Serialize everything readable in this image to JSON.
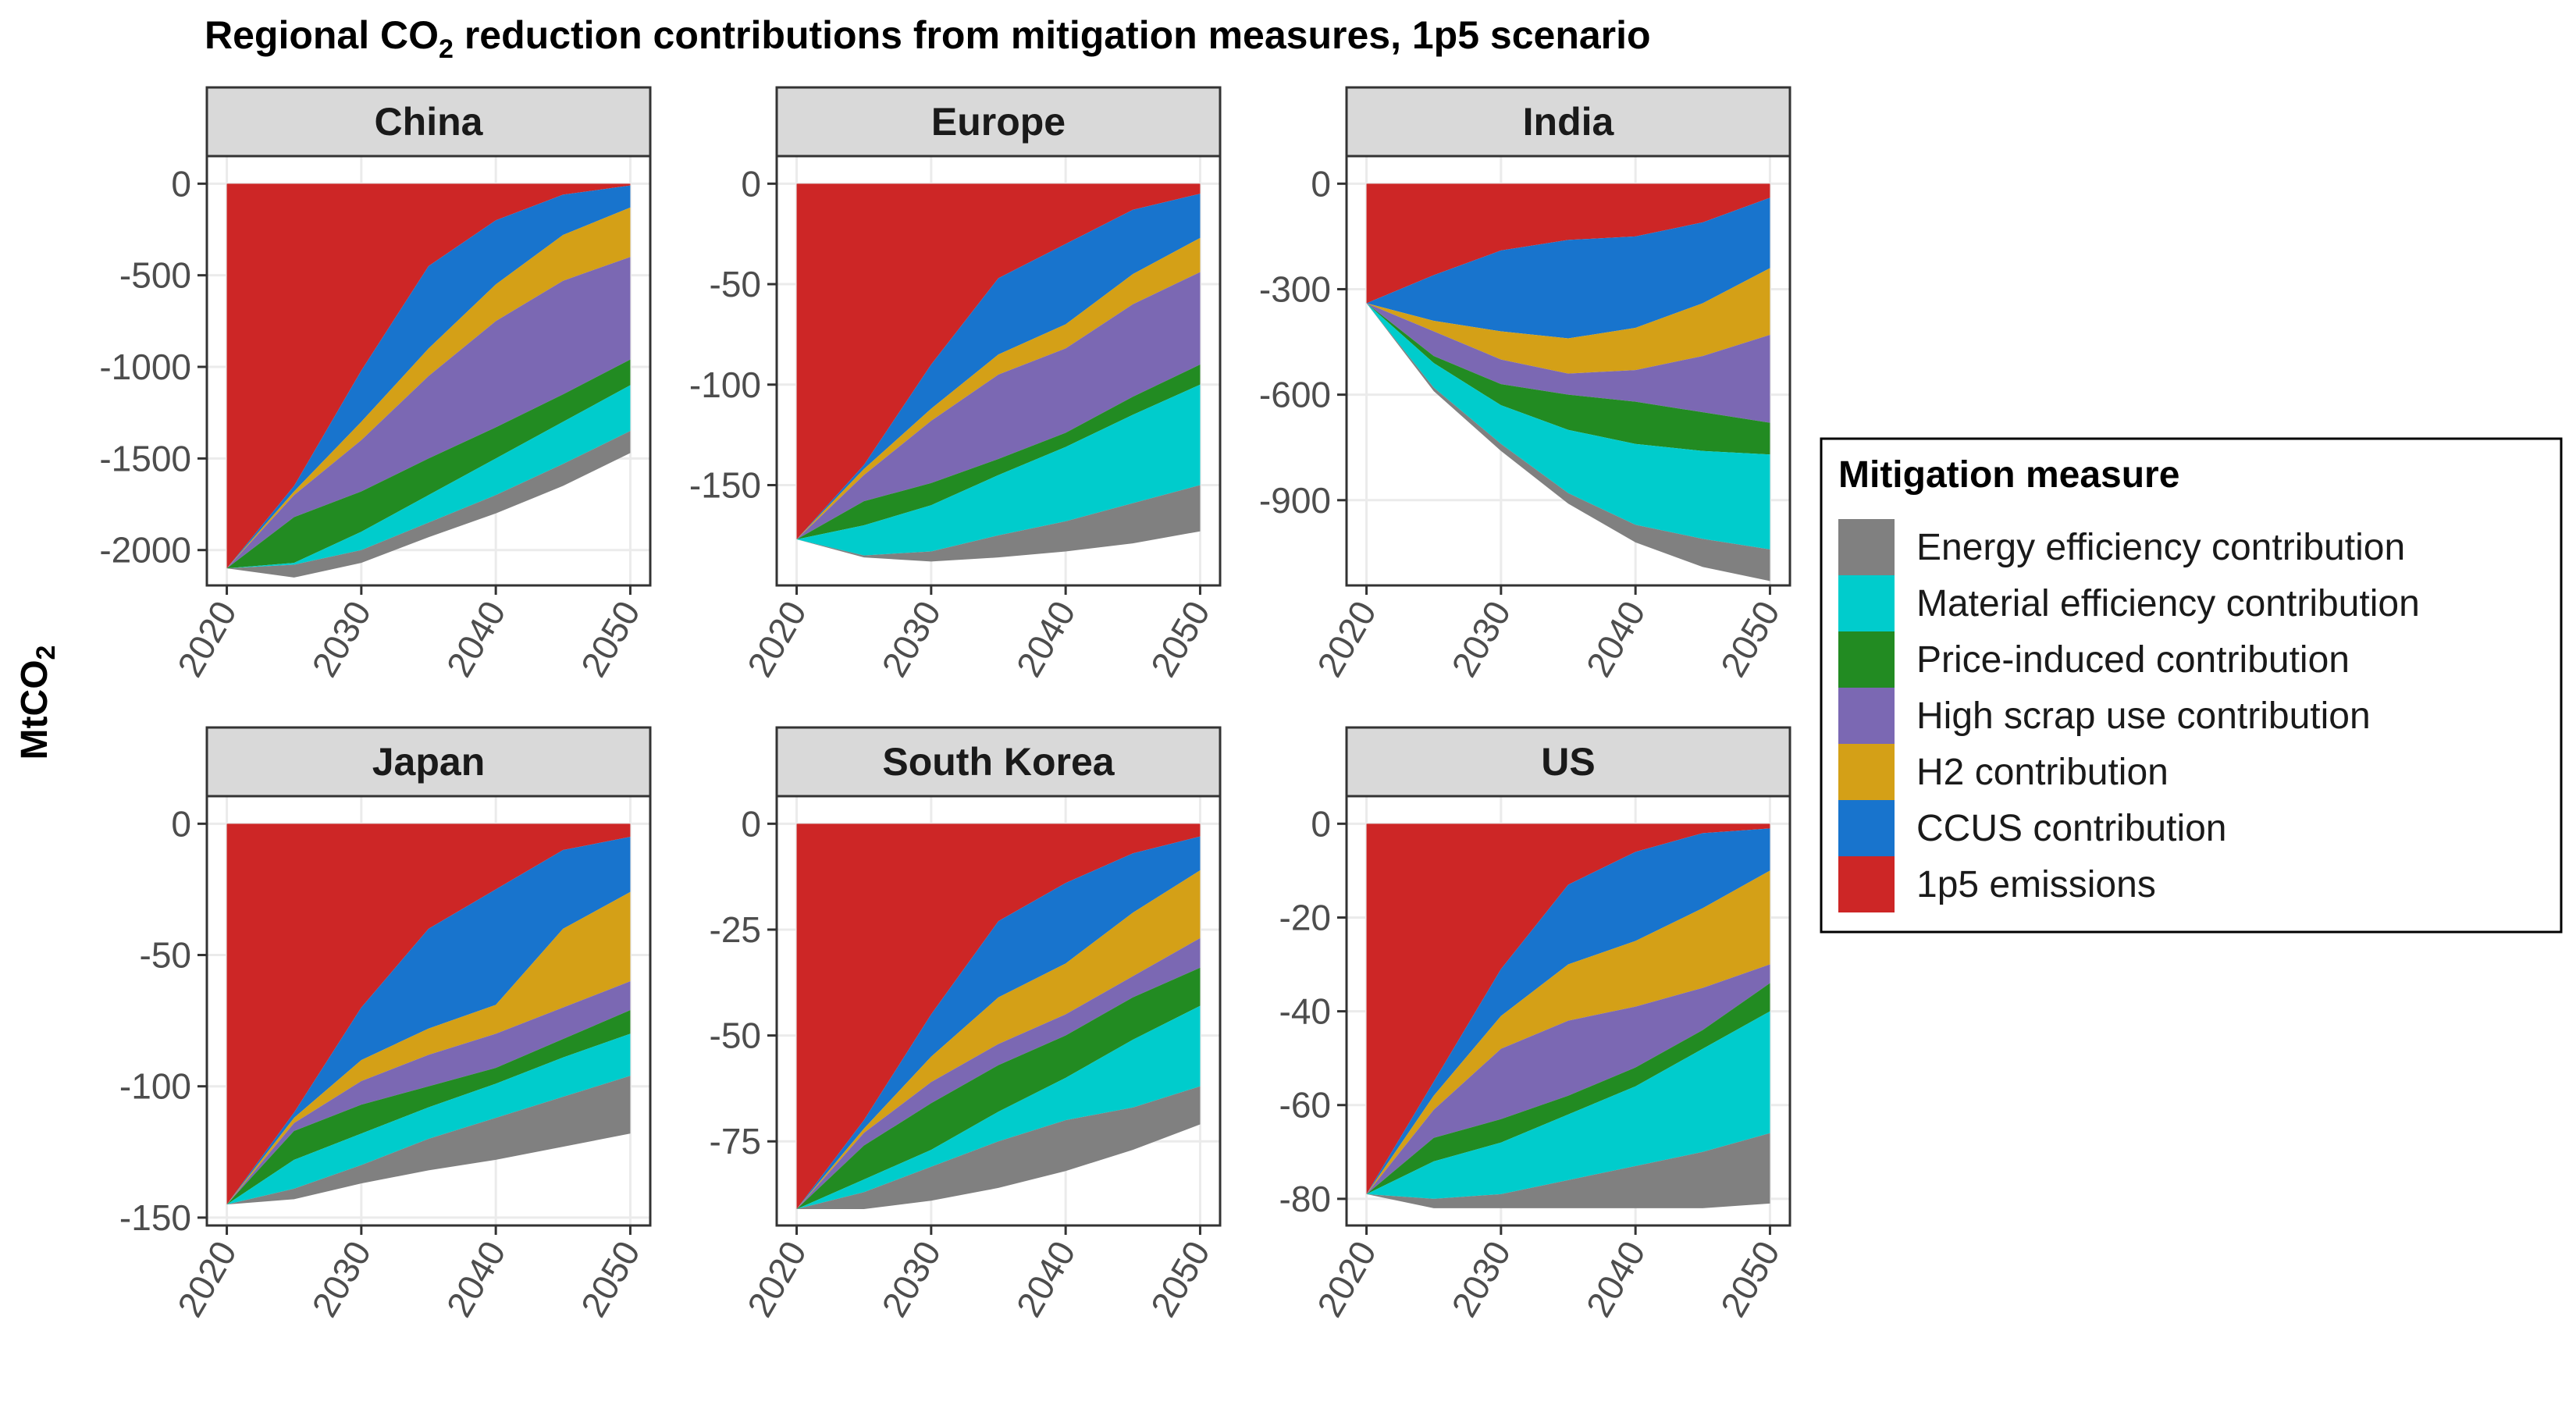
{
  "title": {
    "before": "Regional CO",
    "sub": "2",
    "after": " reduction contributions from mitigation measures, 1p5 scenario"
  },
  "ylabel": {
    "main": "MtCO",
    "sub": "2"
  },
  "legend": {
    "title": "Mitigation measure",
    "items": [
      {
        "label": "Energy efficiency contribution",
        "color": "#808080"
      },
      {
        "label": "Material efficiency contribution",
        "color": "#00cccc"
      },
      {
        "label": "Price-induced contribution",
        "color": "#228b22"
      },
      {
        "label": "High scrap use contribution",
        "color": "#7b68b3"
      },
      {
        "label": "H2 contribution",
        "color": "#d4a017"
      },
      {
        "label": "CCUS contribution",
        "color": "#1874cd"
      },
      {
        "label": "1p5 emissions",
        "color": "#cd2626"
      }
    ]
  },
  "chart_data": {
    "type": "area",
    "facet_by": "region",
    "x": [
      2020,
      2025,
      2030,
      2035,
      2040,
      2045,
      2050
    ],
    "x_ticks": [
      "2020",
      "2030",
      "2040",
      "2050"
    ],
    "stack_order_bottom_to_top": [
      "Energy efficiency contribution",
      "Material efficiency contribution",
      "Price-induced contribution",
      "High scrap use contribution",
      "H2 contribution",
      "CCUS contribution",
      "1p5 emissions"
    ],
    "panels": [
      {
        "region": "China",
        "ylim": [
          -2150,
          0
        ],
        "y_ticks": [
          0,
          -500,
          -1000,
          -1500,
          -2000
        ],
        "y_tick_labels": [
          "0",
          "-500",
          "-1000",
          "-1500",
          "-2000"
        ],
        "boundaries": [
          {
            "name": "Energy efficiency contribution",
            "values": [
              -2100,
              -2150,
              -2070,
              -1930,
              -1800,
              -1650,
              -1470
            ]
          },
          {
            "name": "Material efficiency contribution",
            "values": [
              -2100,
              -2080,
              -2000,
              -1850,
              -1700,
              -1530,
              -1350
            ]
          },
          {
            "name": "Price-induced contribution",
            "values": [
              -2100,
              -2070,
              -1900,
              -1700,
              -1500,
              -1300,
              -1100
            ]
          },
          {
            "name": "High scrap use contribution",
            "values": [
              -2100,
              -1820,
              -1680,
              -1500,
              -1330,
              -1150,
              -960
            ]
          },
          {
            "name": "H2 contribution",
            "values": [
              -2100,
              -1700,
              -1400,
              -1050,
              -750,
              -530,
              -400
            ]
          },
          {
            "name": "CCUS contribution",
            "values": [
              -2100,
              -1680,
              -1300,
              -900,
              -550,
              -280,
              -130
            ]
          },
          {
            "name": "1p5 emissions",
            "values": [
              -2100,
              -1650,
              -1020,
              -450,
              -200,
              -60,
              -10
            ]
          }
        ]
      },
      {
        "region": "Europe",
        "ylim": [
          -196,
          0
        ],
        "y_ticks": [
          0,
          -50,
          -100,
          -150
        ],
        "y_tick_labels": [
          "0",
          "-50",
          "-100",
          "-150"
        ],
        "boundaries": [
          {
            "name": "Energy efficiency contribution",
            "values": [
              -177,
              -186,
              -188,
              -186,
              -183,
              -179,
              -173
            ]
          },
          {
            "name": "Material efficiency contribution",
            "values": [
              -177,
              -185,
              -183,
              -175,
              -168,
              -159,
              -150
            ]
          },
          {
            "name": "Price-induced contribution",
            "values": [
              -177,
              -170,
              -160,
              -145,
              -131,
              -115,
              -100
            ]
          },
          {
            "name": "High scrap use contribution",
            "values": [
              -177,
              -158,
              -149,
              -137,
              -124,
              -106,
              -90
            ]
          },
          {
            "name": "H2 contribution",
            "values": [
              -177,
              -145,
              -118,
              -95,
              -82,
              -60,
              -44
            ]
          },
          {
            "name": "CCUS contribution",
            "values": [
              -177,
              -142,
              -112,
              -85,
              -70,
              -45,
              -27
            ]
          },
          {
            "name": "1p5 emissions",
            "values": [
              -177,
              -140,
              -90,
              -47,
              -30,
              -13,
              -5
            ]
          }
        ]
      },
      {
        "region": "India",
        "ylim": [
          -1120,
          0
        ],
        "y_ticks": [
          0,
          -300,
          -600,
          -900
        ],
        "y_tick_labels": [
          "0",
          "-300",
          "-600",
          "-900"
        ],
        "boundaries": [
          {
            "name": "Energy efficiency contribution",
            "values": [
              -340,
              -590,
              -760,
              -910,
              -1020,
              -1090,
              -1130
            ]
          },
          {
            "name": "Material efficiency contribution",
            "values": [
              -340,
              -580,
              -740,
              -880,
              -970,
              -1010,
              -1040
            ]
          },
          {
            "name": "Price-induced contribution",
            "values": [
              -340,
              -510,
              -630,
              -700,
              -740,
              -760,
              -770
            ]
          },
          {
            "name": "High scrap use contribution",
            "values": [
              -340,
              -490,
              -570,
              -600,
              -620,
              -650,
              -680
            ]
          },
          {
            "name": "H2 contribution",
            "values": [
              -340,
              -420,
              -500,
              -540,
              -530,
              -490,
              -430
            ]
          },
          {
            "name": "CCUS contribution",
            "values": [
              -340,
              -390,
              -420,
              -440,
              -410,
              -340,
              -240
            ]
          },
          {
            "name": "1p5 emissions",
            "values": [
              -340,
              -260,
              -190,
              -160,
              -150,
              -110,
              -40
            ]
          }
        ]
      },
      {
        "region": "Japan",
        "ylim": [
          -150,
          0
        ],
        "y_ticks": [
          0,
          -50,
          -100,
          -150
        ],
        "y_tick_labels": [
          "0",
          "-50",
          "-100",
          "-150"
        ],
        "boundaries": [
          {
            "name": "Energy efficiency contribution",
            "values": [
              -145,
              -143,
              -137,
              -132,
              -128,
              -123,
              -118
            ]
          },
          {
            "name": "Material efficiency contribution",
            "values": [
              -145,
              -139,
              -130,
              -120,
              -112,
              -104,
              -96
            ]
          },
          {
            "name": "Price-induced contribution",
            "values": [
              -145,
              -128,
              -118,
              -108,
              -99,
              -89,
              -80
            ]
          },
          {
            "name": "High scrap use contribution",
            "values": [
              -145,
              -117,
              -107,
              -100,
              -93,
              -82,
              -71
            ]
          },
          {
            "name": "H2 contribution",
            "values": [
              -145,
              -114,
              -98,
              -88,
              -80,
              -70,
              -60
            ]
          },
          {
            "name": "CCUS contribution",
            "values": [
              -145,
              -112,
              -90,
              -78,
              -69,
              -40,
              -26
            ]
          },
          {
            "name": "1p5 emissions",
            "values": [
              -145,
              -110,
              -70,
              -40,
              -25,
              -10,
              -5
            ]
          }
        ]
      },
      {
        "region": "South Korea",
        "ylim": [
          -93,
          0
        ],
        "y_ticks": [
          0,
          -25,
          -50,
          -75
        ],
        "y_tick_labels": [
          "0",
          "-25",
          "-50",
          "-75"
        ],
        "boundaries": [
          {
            "name": "Energy efficiency contribution",
            "values": [
              -91,
              -91,
              -89,
              -86,
              -82,
              -77,
              -71
            ]
          },
          {
            "name": "Material efficiency contribution",
            "values": [
              -91,
              -87,
              -81,
              -75,
              -70,
              -67,
              -62
            ]
          },
          {
            "name": "Price-induced contribution",
            "values": [
              -91,
              -84,
              -77,
              -68,
              -60,
              -51,
              -43
            ]
          },
          {
            "name": "High scrap use contribution",
            "values": [
              -91,
              -76,
              -66,
              -57,
              -50,
              -41,
              -34
            ]
          },
          {
            "name": "H2 contribution",
            "values": [
              -91,
              -73,
              -61,
              -52,
              -45,
              -36,
              -27
            ]
          },
          {
            "name": "CCUS contribution",
            "values": [
              -91,
              -72,
              -55,
              -41,
              -33,
              -21,
              -11
            ]
          },
          {
            "name": "1p5 emissions",
            "values": [
              -91,
              -70,
              -45,
              -23,
              -14,
              -7,
              -3
            ]
          }
        ]
      },
      {
        "region": "US",
        "ylim": [
          -84,
          0
        ],
        "y_ticks": [
          0,
          -20,
          -40,
          -60,
          -80
        ],
        "y_tick_labels": [
          "0",
          "-20",
          "-40",
          "-60",
          "-80"
        ],
        "boundaries": [
          {
            "name": "Energy efficiency contribution",
            "values": [
              -79,
              -82,
              -82,
              -82,
              -82,
              -82,
              -81
            ]
          },
          {
            "name": "Material efficiency contribution",
            "values": [
              -79,
              -80,
              -79,
              -76,
              -73,
              -70,
              -66
            ]
          },
          {
            "name": "Price-induced contribution",
            "values": [
              -79,
              -72,
              -68,
              -62,
              -56,
              -48,
              -40
            ]
          },
          {
            "name": "High scrap use contribution",
            "values": [
              -79,
              -67,
              -63,
              -58,
              -52,
              -44,
              -34
            ]
          },
          {
            "name": "H2 contribution",
            "values": [
              -79,
              -61,
              -48,
              -42,
              -39,
              -35,
              -30
            ]
          },
          {
            "name": "CCUS contribution",
            "values": [
              -79,
              -58,
              -41,
              -30,
              -25,
              -18,
              -10
            ]
          },
          {
            "name": "1p5 emissions",
            "values": [
              -79,
              -55,
              -31,
              -13,
              -6,
              -2,
              -1
            ]
          }
        ]
      }
    ]
  }
}
